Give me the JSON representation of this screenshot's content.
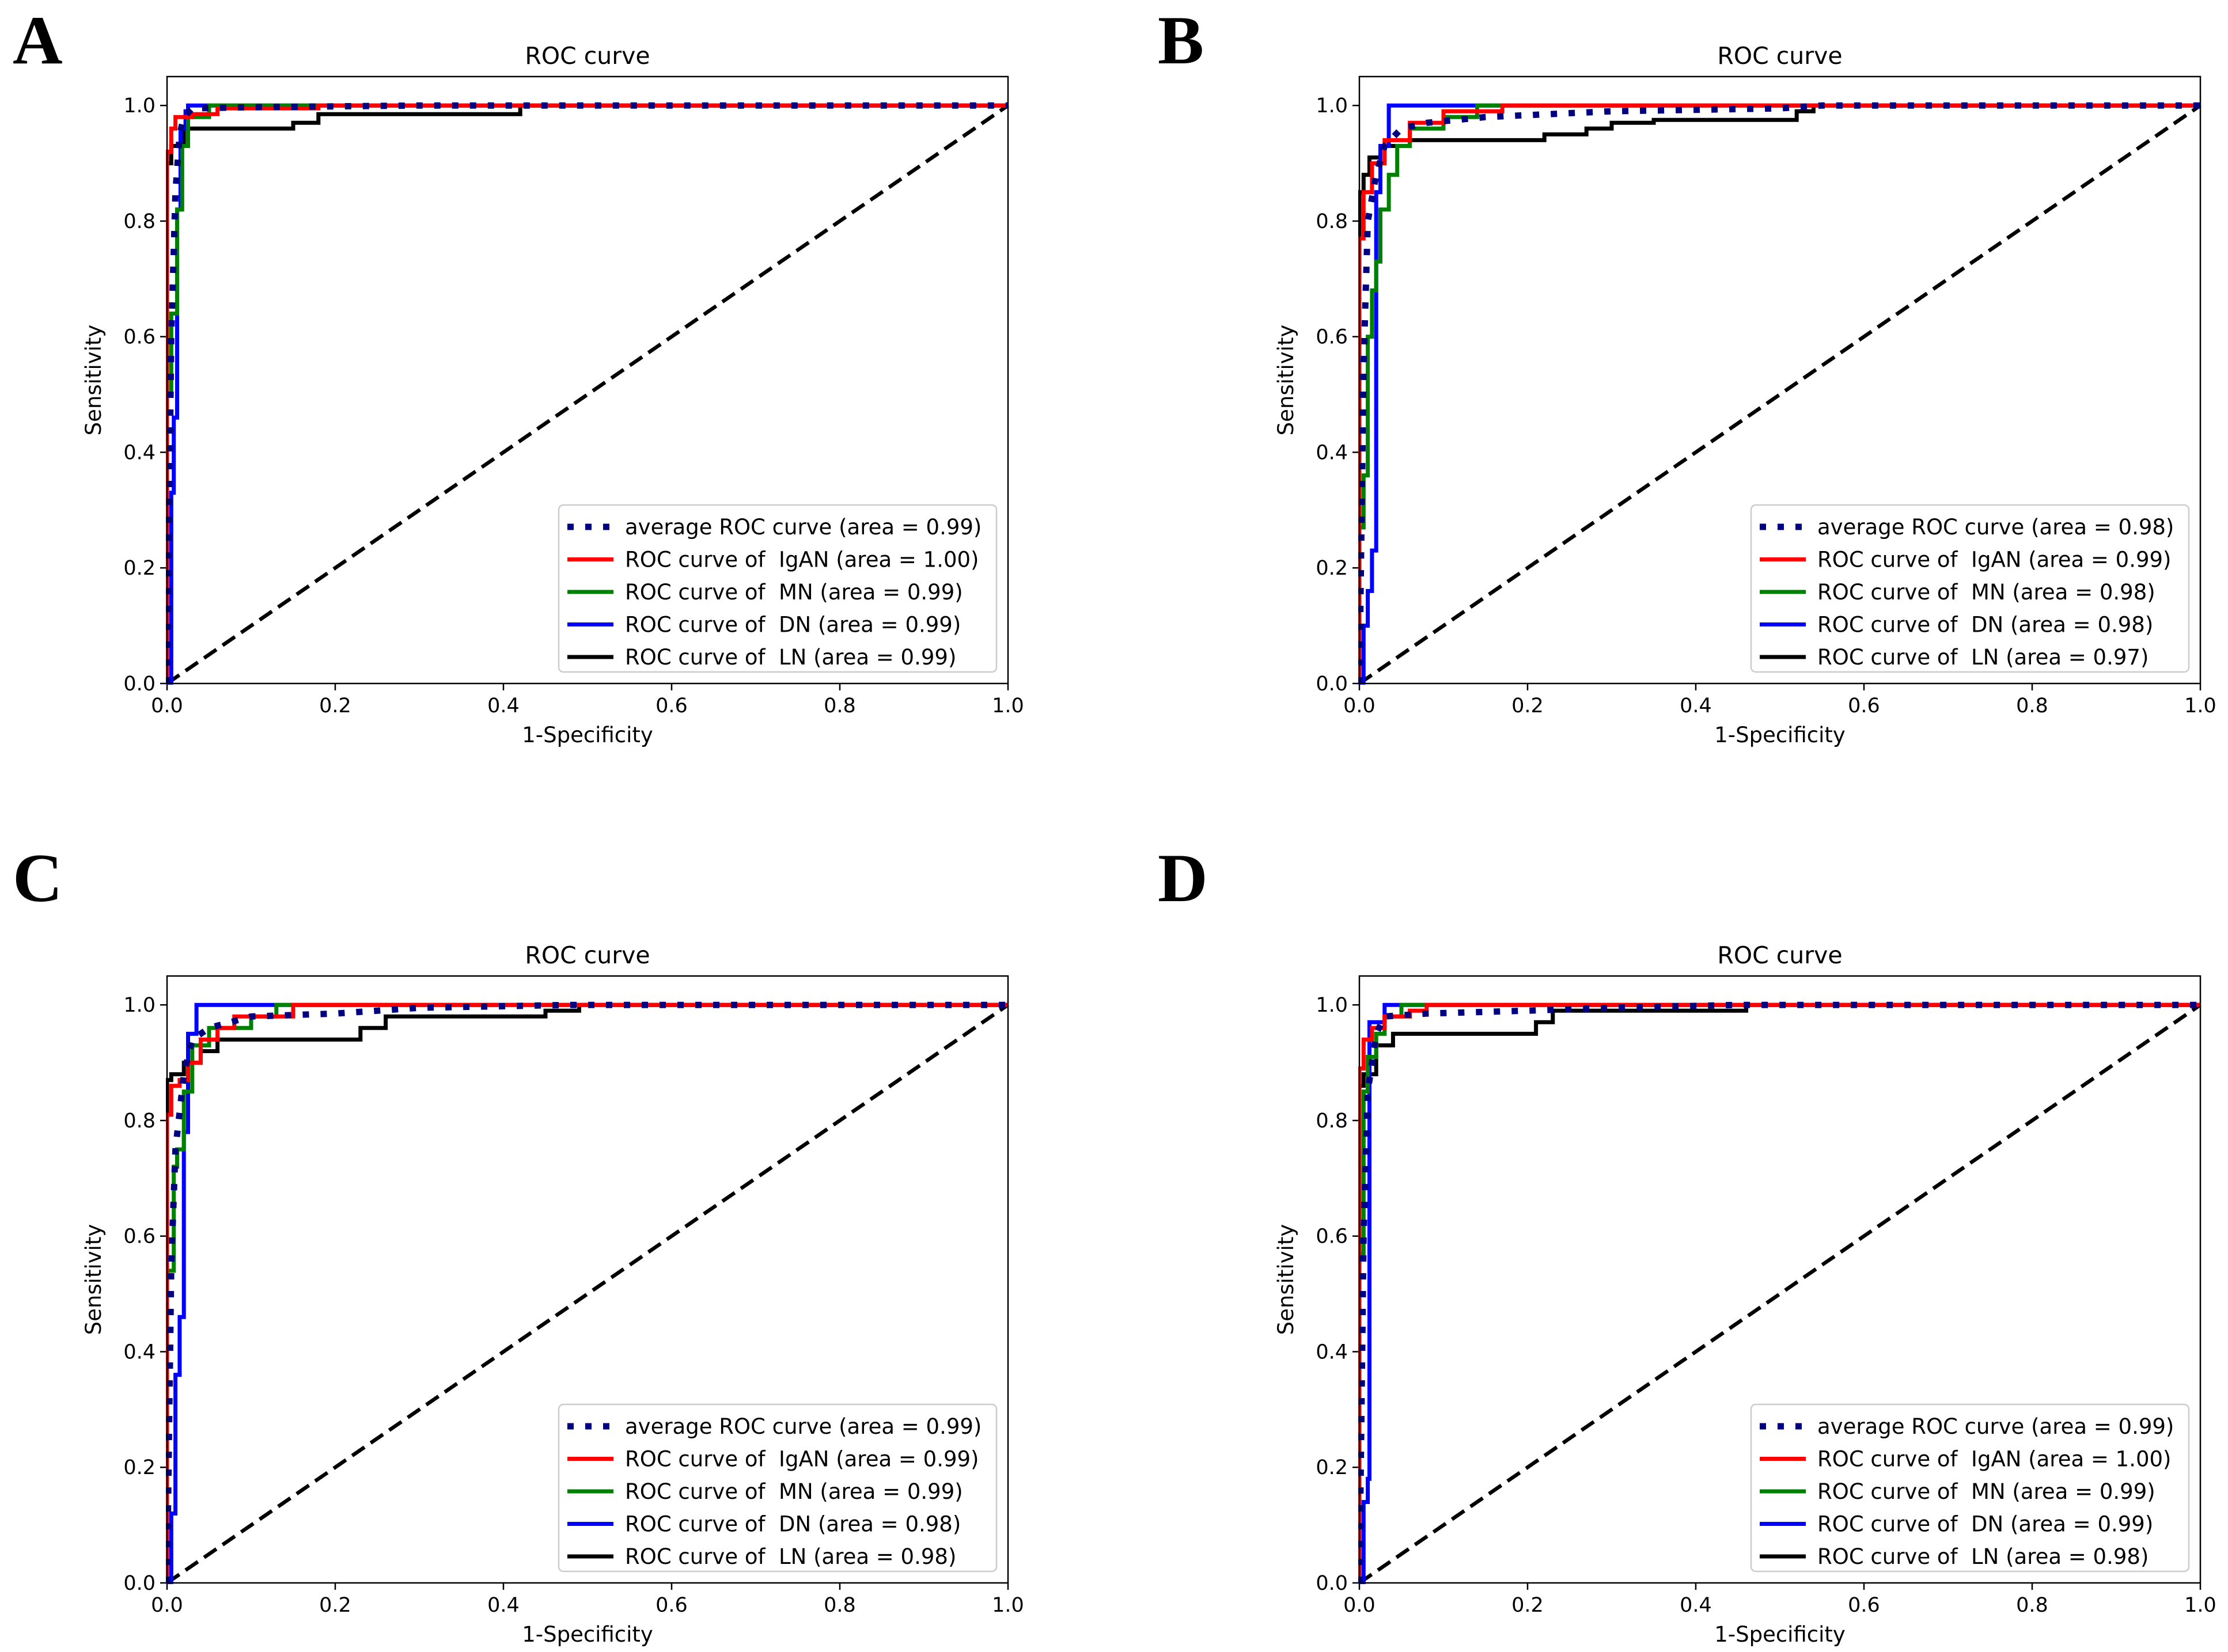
{
  "figure": {
    "panel_letters": [
      "A",
      "B",
      "C",
      "D"
    ]
  },
  "chart_data": [
    {
      "panel": "A",
      "type": "line",
      "title": "ROC curve",
      "xlabel": "1-Specificity",
      "ylabel": "Sensitivity",
      "xlim": [
        0,
        1
      ],
      "ylim": [
        0,
        1.05
      ],
      "xticks": [
        "0.0",
        "0.2",
        "0.4",
        "0.6",
        "0.8",
        "1.0"
      ],
      "yticks": [
        "0.0",
        "0.2",
        "0.4",
        "0.6",
        "0.8",
        "1.0"
      ],
      "legend_position": "lower-right",
      "series": [
        {
          "name": "average ROC curve (area = 0.99)",
          "color": "#000080",
          "style": "dotted",
          "x": [
            0,
            0.005,
            0.01,
            0.015,
            0.02,
            0.03,
            0.1,
            0.3,
            1.0
          ],
          "y": [
            0,
            0.6,
            0.85,
            0.95,
            0.98,
            0.995,
            0.997,
            1.0,
            1.0
          ]
        },
        {
          "name": "ROC curve of  IgAN (area = 1.00)",
          "color": "#ff0000",
          "style": "solid",
          "x": [
            0,
            0,
            0.005,
            0.005,
            0.01,
            0.01,
            0.03,
            0.03,
            0.06,
            0.06,
            0.18,
            0.18,
            1.0
          ],
          "y": [
            0,
            0.92,
            0.92,
            0.96,
            0.96,
            0.98,
            0.98,
            0.985,
            0.985,
            0.995,
            0.995,
            1.0,
            1.0
          ]
        },
        {
          "name": "ROC curve of  MN (area = 0.99)",
          "color": "#008000",
          "style": "solid",
          "x": [
            0,
            0,
            0.005,
            0.005,
            0.012,
            0.012,
            0.018,
            0.018,
            0.025,
            0.025,
            0.05,
            0.05,
            1.0
          ],
          "y": [
            0,
            0.5,
            0.5,
            0.64,
            0.64,
            0.82,
            0.82,
            0.93,
            0.93,
            0.98,
            0.98,
            1.0,
            1.0
          ]
        },
        {
          "name": "ROC curve of  DN (area = 0.99)",
          "color": "#0000ff",
          "style": "solid",
          "x": [
            0,
            0.005,
            0.005,
            0.008,
            0.008,
            0.012,
            0.012,
            0.016,
            0.016,
            0.022,
            0.022,
            0.025,
            0.025,
            1.0
          ],
          "y": [
            0,
            0,
            0.33,
            0.33,
            0.46,
            0.46,
            0.82,
            0.82,
            0.96,
            0.96,
            0.99,
            0.99,
            1.0,
            1.0
          ]
        },
        {
          "name": "ROC curve of  LN (area = 0.99)",
          "color": "#000000",
          "style": "solid",
          "x": [
            0,
            0,
            0.005,
            0.005,
            0.02,
            0.02,
            0.15,
            0.15,
            0.18,
            0.18,
            0.42,
            0.42,
            1.0
          ],
          "y": [
            0,
            0.9,
            0.9,
            0.93,
            0.93,
            0.96,
            0.96,
            0.97,
            0.97,
            0.985,
            0.985,
            1.0,
            1.0
          ]
        },
        {
          "name": "",
          "color": "#000000",
          "style": "dashed",
          "x": [
            0,
            1
          ],
          "y": [
            0,
            1
          ]
        }
      ]
    },
    {
      "panel": "B",
      "type": "line",
      "title": "ROC curve",
      "xlabel": "1-Specificity",
      "ylabel": "Sensitivity",
      "xlim": [
        0,
        1
      ],
      "ylim": [
        0,
        1.05
      ],
      "xticks": [
        "0.0",
        "0.2",
        "0.4",
        "0.6",
        "0.8",
        "1.0"
      ],
      "yticks": [
        "0.0",
        "0.2",
        "0.4",
        "0.6",
        "0.8",
        "1.0"
      ],
      "legend_position": "lower-right",
      "series": [
        {
          "name": "average ROC curve (area = 0.98)",
          "color": "#000080",
          "style": "dotted",
          "x": [
            0,
            0.005,
            0.01,
            0.02,
            0.03,
            0.05,
            0.08,
            0.15,
            0.3,
            0.5,
            0.55,
            1.0
          ],
          "y": [
            0,
            0.55,
            0.8,
            0.88,
            0.93,
            0.96,
            0.97,
            0.98,
            0.99,
            0.995,
            1.0,
            1.0
          ]
        },
        {
          "name": "ROC curve of  IgAN (area = 0.99)",
          "color": "#ff0000",
          "style": "solid",
          "x": [
            0,
            0,
            0.005,
            0.005,
            0.015,
            0.015,
            0.03,
            0.03,
            0.06,
            0.06,
            0.1,
            0.1,
            0.17,
            0.17,
            1.0
          ],
          "y": [
            0,
            0.77,
            0.77,
            0.85,
            0.85,
            0.9,
            0.9,
            0.94,
            0.94,
            0.97,
            0.97,
            0.99,
            0.99,
            1.0,
            1.0
          ]
        },
        {
          "name": "ROC curve of  MN (area = 0.98)",
          "color": "#008000",
          "style": "solid",
          "x": [
            0,
            0,
            0.005,
            0.005,
            0.01,
            0.01,
            0.015,
            0.015,
            0.02,
            0.02,
            0.025,
            0.025,
            0.035,
            0.035,
            0.045,
            0.045,
            0.06,
            0.06,
            0.1,
            0.1,
            0.14,
            0.14,
            1.0
          ],
          "y": [
            0,
            0.27,
            0.27,
            0.36,
            0.36,
            0.6,
            0.6,
            0.68,
            0.68,
            0.73,
            0.73,
            0.82,
            0.82,
            0.88,
            0.88,
            0.93,
            0.93,
            0.96,
            0.96,
            0.98,
            0.98,
            1.0,
            1.0
          ]
        },
        {
          "name": "ROC curve of  DN (area = 0.98)",
          "color": "#0000ff",
          "style": "solid",
          "x": [
            0,
            0.005,
            0.005,
            0.01,
            0.01,
            0.015,
            0.015,
            0.02,
            0.02,
            0.025,
            0.025,
            0.035,
            0.035,
            1.0
          ],
          "y": [
            0,
            0,
            0.1,
            0.1,
            0.16,
            0.16,
            0.23,
            0.23,
            0.85,
            0.85,
            0.93,
            0.93,
            1.0,
            1.0
          ]
        },
        {
          "name": "ROC curve of  LN (area = 0.97)",
          "color": "#000000",
          "style": "solid",
          "x": [
            0,
            0,
            0.005,
            0.005,
            0.012,
            0.012,
            0.025,
            0.025,
            0.06,
            0.06,
            0.22,
            0.22,
            0.27,
            0.27,
            0.3,
            0.3,
            0.35,
            0.35,
            0.52,
            0.52,
            0.54,
            0.54,
            1.0
          ],
          "y": [
            0,
            0.85,
            0.85,
            0.88,
            0.88,
            0.91,
            0.91,
            0.93,
            0.93,
            0.94,
            0.94,
            0.95,
            0.95,
            0.96,
            0.96,
            0.97,
            0.97,
            0.975,
            0.975,
            0.99,
            0.99,
            1.0,
            1.0
          ]
        },
        {
          "name": "",
          "color": "#000000",
          "style": "dashed",
          "x": [
            0,
            1
          ],
          "y": [
            0,
            1
          ]
        }
      ]
    },
    {
      "panel": "C",
      "type": "line",
      "title": "ROC curve",
      "xlabel": "1-Specificity",
      "ylabel": "Sensitivity",
      "xlim": [
        0,
        1
      ],
      "ylim": [
        0,
        1.05
      ],
      "xticks": [
        "0.0",
        "0.2",
        "0.4",
        "0.6",
        "0.8",
        "1.0"
      ],
      "yticks": [
        "0.0",
        "0.2",
        "0.4",
        "0.6",
        "0.8",
        "1.0"
      ],
      "legend_position": "lower-right",
      "series": [
        {
          "name": "average ROC curve (area = 0.99)",
          "color": "#000080",
          "style": "dotted",
          "x": [
            0,
            0.005,
            0.01,
            0.02,
            0.03,
            0.05,
            0.1,
            0.2,
            0.3,
            0.48,
            1.0
          ],
          "y": [
            0,
            0.55,
            0.75,
            0.88,
            0.94,
            0.96,
            0.98,
            0.985,
            0.995,
            1.0,
            1.0
          ]
        },
        {
          "name": "ROC curve of  IgAN (area = 0.99)",
          "color": "#ff0000",
          "style": "solid",
          "x": [
            0,
            0,
            0.005,
            0.005,
            0.015,
            0.015,
            0.025,
            0.025,
            0.04,
            0.04,
            0.06,
            0.06,
            0.08,
            0.08,
            0.15,
            0.15,
            1.0
          ],
          "y": [
            0,
            0.81,
            0.81,
            0.86,
            0.86,
            0.87,
            0.87,
            0.9,
            0.9,
            0.94,
            0.94,
            0.96,
            0.96,
            0.98,
            0.98,
            1.0,
            1.0
          ]
        },
        {
          "name": "ROC curve of  MN (area = 0.99)",
          "color": "#008000",
          "style": "solid",
          "x": [
            0,
            0,
            0.008,
            0.008,
            0.012,
            0.012,
            0.02,
            0.02,
            0.03,
            0.03,
            0.05,
            0.05,
            0.1,
            0.1,
            0.13,
            0.13,
            1.0
          ],
          "y": [
            0,
            0.54,
            0.54,
            0.72,
            0.72,
            0.75,
            0.75,
            0.85,
            0.85,
            0.93,
            0.93,
            0.96,
            0.96,
            0.98,
            0.98,
            1.0,
            1.0
          ]
        },
        {
          "name": "ROC curve of  DN (area = 0.98)",
          "color": "#0000ff",
          "style": "solid",
          "x": [
            0,
            0.005,
            0.005,
            0.01,
            0.01,
            0.015,
            0.015,
            0.02,
            0.02,
            0.025,
            0.025,
            0.035,
            0.035,
            1.0
          ],
          "y": [
            0,
            0,
            0.12,
            0.12,
            0.36,
            0.36,
            0.46,
            0.46,
            0.78,
            0.78,
            0.95,
            0.95,
            1.0,
            1.0
          ]
        },
        {
          "name": "ROC curve of  LN (area = 0.98)",
          "color": "#000000",
          "style": "solid",
          "x": [
            0,
            0,
            0.005,
            0.005,
            0.02,
            0.02,
            0.04,
            0.04,
            0.06,
            0.06,
            0.23,
            0.23,
            0.26,
            0.26,
            0.45,
            0.45,
            0.49,
            0.49,
            1.0
          ],
          "y": [
            0,
            0.87,
            0.87,
            0.88,
            0.88,
            0.9,
            0.9,
            0.92,
            0.92,
            0.94,
            0.94,
            0.96,
            0.96,
            0.98,
            0.98,
            0.99,
            0.99,
            1.0,
            1.0
          ]
        },
        {
          "name": "",
          "color": "#000000",
          "style": "dashed",
          "x": [
            0,
            1
          ],
          "y": [
            0,
            1
          ]
        }
      ]
    },
    {
      "panel": "D",
      "type": "line",
      "title": "ROC curve",
      "xlabel": "1-Specificity",
      "ylabel": "Sensitivity",
      "xlim": [
        0,
        1
      ],
      "ylim": [
        0,
        1.05
      ],
      "xticks": [
        "0.0",
        "0.2",
        "0.4",
        "0.6",
        "0.8",
        "1.0"
      ],
      "yticks": [
        "0.0",
        "0.2",
        "0.4",
        "0.6",
        "0.8",
        "1.0"
      ],
      "legend_position": "lower-right",
      "series": [
        {
          "name": "average ROC curve (area = 0.99)",
          "color": "#000080",
          "style": "dotted",
          "x": [
            0,
            0.005,
            0.01,
            0.02,
            0.03,
            0.08,
            0.2,
            0.3,
            0.45,
            1.0
          ],
          "y": [
            0,
            0.6,
            0.85,
            0.95,
            0.98,
            0.985,
            0.99,
            0.995,
            1.0,
            1.0
          ]
        },
        {
          "name": "ROC curve of  IgAN (area = 1.00)",
          "color": "#ff0000",
          "style": "solid",
          "x": [
            0,
            0,
            0.005,
            0.005,
            0.015,
            0.015,
            0.03,
            0.03,
            0.06,
            0.06,
            0.08,
            0.08,
            1.0
          ],
          "y": [
            0,
            0.89,
            0.89,
            0.94,
            0.94,
            0.96,
            0.96,
            0.98,
            0.98,
            0.99,
            0.99,
            1.0,
            1.0
          ]
        },
        {
          "name": "ROC curve of  MN (area = 0.99)",
          "color": "#008000",
          "style": "solid",
          "x": [
            0,
            0,
            0.005,
            0.005,
            0.01,
            0.01,
            0.02,
            0.02,
            0.03,
            0.03,
            0.05,
            0.05,
            1.0
          ],
          "y": [
            0,
            0.57,
            0.57,
            0.85,
            0.85,
            0.91,
            0.91,
            0.95,
            0.95,
            0.98,
            0.98,
            1.0,
            1.0
          ]
        },
        {
          "name": "ROC curve of  DN (area = 0.99)",
          "color": "#0000ff",
          "style": "solid",
          "x": [
            0,
            0.005,
            0.005,
            0.01,
            0.01,
            0.012,
            0.012,
            0.018,
            0.018,
            0.03,
            0.03,
            1.0
          ],
          "y": [
            0,
            0,
            0.14,
            0.14,
            0.18,
            0.18,
            0.97,
            0.97,
            0.97,
            0.97,
            1.0,
            1.0
          ]
        },
        {
          "name": "ROC curve of  LN (area = 0.98)",
          "color": "#000000",
          "style": "solid",
          "x": [
            0,
            0,
            0.005,
            0.005,
            0.02,
            0.02,
            0.04,
            0.04,
            0.21,
            0.21,
            0.23,
            0.23,
            0.46,
            0.46,
            1.0
          ],
          "y": [
            0,
            0.86,
            0.86,
            0.88,
            0.88,
            0.93,
            0.93,
            0.95,
            0.95,
            0.97,
            0.97,
            0.99,
            0.99,
            1.0,
            1.0
          ]
        },
        {
          "name": "",
          "color": "#000000",
          "style": "dashed",
          "x": [
            0,
            1
          ],
          "y": [
            0,
            1
          ]
        }
      ]
    }
  ]
}
